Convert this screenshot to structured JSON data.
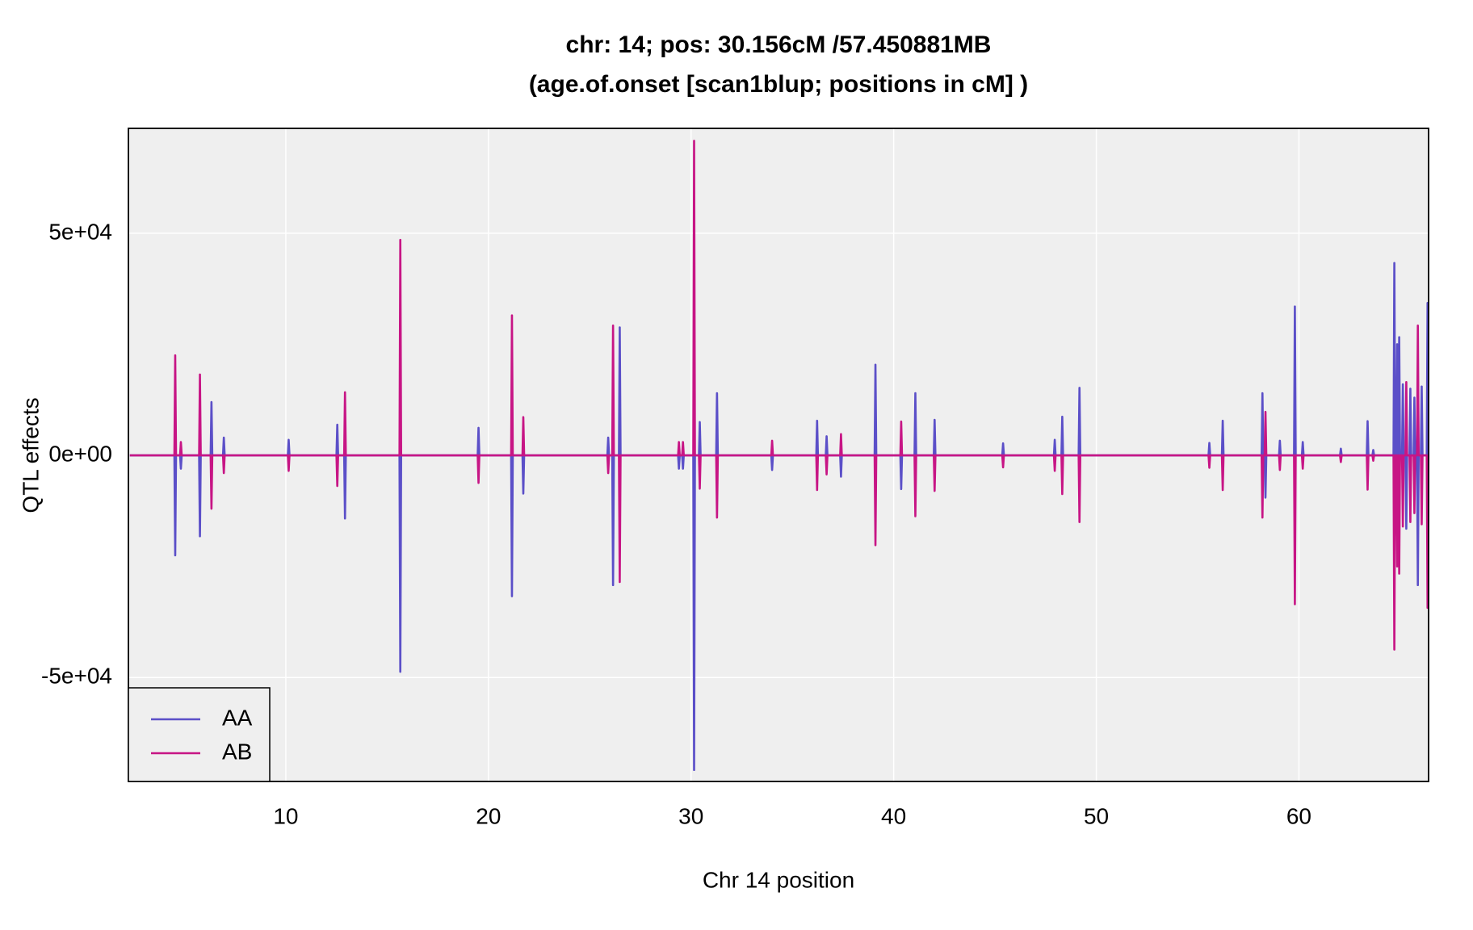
{
  "chart_data": {
    "type": "line",
    "title": [
      "chr: 14; pos: 30.156cM /57.450881MB",
      "(age.of.onset [scan1blup; positions in cM] )"
    ],
    "xlabel": "Chr 14 position",
    "ylabel": "QTL effects",
    "xlim": [
      2.23,
      66.4
    ],
    "ylim": [
      -73400,
      73600
    ],
    "xticks": [
      10,
      20,
      30,
      40,
      50,
      60
    ],
    "yticks": [
      {
        "value": -50000,
        "label": "-5e+04"
      },
      {
        "value": 0,
        "label": "0e+00"
      },
      {
        "value": 50000,
        "label": "5e+04"
      }
    ],
    "grid": true,
    "legend": "bottomleft",
    "x": [
      2.3,
      4.5,
      4.54,
      4.58,
      4.78,
      4.82,
      4.86,
      5.72,
      5.76,
      5.8,
      6.29,
      6.33,
      6.37,
      6.9,
      6.94,
      6.98,
      10.1,
      10.14,
      10.18,
      12.5,
      12.54,
      12.58,
      12.88,
      12.92,
      12.96,
      15.61,
      15.65,
      15.69,
      19.47,
      19.51,
      19.55,
      21.12,
      21.16,
      21.2,
      21.68,
      21.72,
      21.76,
      25.87,
      25.91,
      25.95,
      26.11,
      26.15,
      26.19,
      26.44,
      26.48,
      26.52,
      29.36,
      29.4,
      29.44,
      29.56,
      29.6,
      29.64,
      30.11,
      30.15,
      30.19,
      30.39,
      30.43,
      30.47,
      31.24,
      31.28,
      31.32,
      33.96,
      34.0,
      34.04,
      36.18,
      36.22,
      36.26,
      36.65,
      36.69,
      36.73,
      37.36,
      37.4,
      37.44,
      39.06,
      39.1,
      39.14,
      40.33,
      40.37,
      40.41,
      41.03,
      41.07,
      41.11,
      41.98,
      42.02,
      42.06,
      45.36,
      45.4,
      45.44,
      47.91,
      47.95,
      47.99,
      48.28,
      48.32,
      48.36,
      49.13,
      49.17,
      49.21,
      55.54,
      55.58,
      55.62,
      56.2,
      56.24,
      56.28,
      58.16,
      58.2,
      58.24,
      58.31,
      58.35,
      58.39,
      59.02,
      59.06,
      59.1,
      59.76,
      59.8,
      59.84,
      60.15,
      60.19,
      60.23,
      62.03,
      62.07,
      62.11,
      63.35,
      63.39,
      63.43,
      63.63,
      63.67,
      63.71,
      64.67,
      64.71,
      64.75,
      64.81,
      64.85,
      64.89,
      64.91,
      64.95,
      64.99,
      65.09,
      65.13,
      65.17,
      65.26,
      65.3,
      65.34,
      65.46,
      65.5,
      65.54,
      65.66,
      65.7,
      65.74,
      65.83,
      65.87,
      65.91,
      66.02,
      66.06,
      66.1,
      66.31,
      66.35,
      66.39
    ],
    "series": [
      {
        "name": "AA",
        "color": "#5b4fc8",
        "values": [
          0,
          0,
          -22500,
          0,
          0,
          -3000,
          0,
          0,
          -18200,
          0,
          0,
          12000,
          0,
          0,
          4000,
          0,
          0,
          3500,
          0,
          0,
          6900,
          0,
          0,
          -14200,
          0,
          0,
          -48700,
          0,
          0,
          6200,
          0,
          0,
          -31700,
          0,
          0,
          -8600,
          0,
          0,
          4000,
          0,
          0,
          -29200,
          0,
          0,
          28800,
          0,
          0,
          -3000,
          0,
          0,
          -3000,
          0,
          0,
          -70800,
          0,
          0,
          7500,
          0,
          0,
          14000,
          0,
          0,
          -3300,
          0,
          0,
          7800,
          0,
          0,
          4300,
          0,
          0,
          -4800,
          0,
          0,
          20400,
          0,
          0,
          -7600,
          0,
          0,
          14000,
          0,
          0,
          8000,
          0,
          0,
          2700,
          0,
          0,
          3500,
          0,
          0,
          8700,
          0,
          0,
          15200,
          0,
          0,
          2800,
          0,
          0,
          7800,
          0,
          0,
          14000,
          0,
          0,
          -9500,
          0,
          0,
          3300,
          0,
          0,
          33500,
          0,
          0,
          3000,
          0,
          0,
          1500,
          0,
          0,
          7700,
          0,
          0,
          1200,
          0,
          0,
          43300,
          0,
          0,
          25000,
          0,
          0,
          26600,
          0,
          0,
          16000,
          0,
          0,
          -16500,
          0,
          0,
          15000,
          0,
          0,
          13000,
          0,
          0,
          -29200,
          0,
          0,
          15500,
          0,
          0,
          34300,
          0
        ]
      },
      {
        "name": "AB",
        "color": "#c71585",
        "values": [
          0,
          0,
          22500,
          0,
          0,
          3000,
          0,
          0,
          18200,
          0,
          0,
          -12000,
          0,
          0,
          -4000,
          0,
          0,
          -3500,
          0,
          0,
          -6900,
          0,
          0,
          14200,
          0,
          0,
          48500,
          0,
          0,
          -6200,
          0,
          0,
          31500,
          0,
          0,
          8600,
          0,
          0,
          -4000,
          0,
          0,
          29200,
          0,
          0,
          -28500,
          0,
          0,
          3000,
          0,
          0,
          3000,
          0,
          0,
          70800,
          0,
          0,
          -7500,
          0,
          0,
          -14000,
          0,
          0,
          3300,
          0,
          0,
          -7800,
          0,
          0,
          -4300,
          0,
          0,
          4800,
          0,
          0,
          -20200,
          0,
          0,
          7600,
          0,
          0,
          -13700,
          0,
          0,
          -8000,
          0,
          0,
          -2700,
          0,
          0,
          -3500,
          0,
          0,
          -8700,
          0,
          0,
          -15000,
          0,
          0,
          -2800,
          0,
          0,
          -7800,
          0,
          0,
          -14000,
          0,
          0,
          9800,
          0,
          0,
          -3300,
          0,
          0,
          -33500,
          0,
          0,
          -3000,
          0,
          0,
          -1500,
          0,
          0,
          -7700,
          0,
          0,
          -1200,
          0,
          0,
          -43700,
          0,
          0,
          -25000,
          0,
          0,
          -26600,
          0,
          0,
          -16000,
          0,
          0,
          16500,
          0,
          0,
          -15000,
          0,
          0,
          -13000,
          0,
          0,
          29200,
          0,
          0,
          -15500,
          0,
          0,
          -34300,
          0
        ]
      }
    ]
  }
}
